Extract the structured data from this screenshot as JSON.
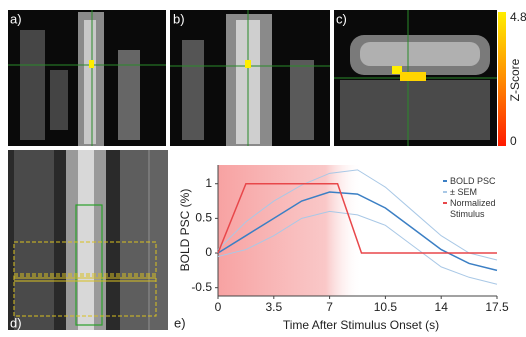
{
  "panels": {
    "a": "a)",
    "b": "b)",
    "c": "c)",
    "d": "d)",
    "e": "e)"
  },
  "colorbar": {
    "label": "Z-Score",
    "lim": [
      0,
      4.8
    ],
    "ticks": [
      4.8,
      0
    ]
  },
  "chart_data": {
    "type": "line",
    "xlabel": "Time After Stimulus Onset (s)",
    "ylabel": "BOLD PSC (%)",
    "xlim": [
      0,
      17.5
    ],
    "ylim": [
      -0.62,
      1.27
    ],
    "xticks": [
      0,
      3.5,
      7,
      10.5,
      14,
      17.5
    ],
    "yticks": [
      -0.5,
      0,
      0.5,
      1
    ],
    "stimulus_window": [
      0,
      9
    ],
    "series": [
      {
        "name": "BOLD PSC",
        "color": "#3b7fc4",
        "x": [
          0,
          1.75,
          3.5,
          5.25,
          7,
          8.75,
          10.5,
          12.25,
          14,
          15.75,
          17.5
        ],
        "values": [
          0,
          0.25,
          0.5,
          0.75,
          0.88,
          0.85,
          0.65,
          0.35,
          0.05,
          -0.15,
          -0.25
        ]
      },
      {
        "name": "± SEM",
        "color": "#a9c8e6",
        "x": [
          0,
          1.75,
          3.5,
          5.25,
          7,
          8.75,
          10.5,
          12.25,
          14,
          15.75,
          17.5
        ],
        "upper": [
          0.05,
          0.45,
          0.75,
          0.98,
          1.15,
          1.2,
          0.95,
          0.6,
          0.25,
          0,
          -0.1
        ],
        "lower": [
          -0.05,
          0.05,
          0.25,
          0.5,
          0.6,
          0.55,
          0.4,
          0.1,
          -0.2,
          -0.35,
          -0.45
        ]
      },
      {
        "name": "Normalized Stimulus",
        "color": "#e8474a",
        "x": [
          0,
          1.75,
          7.5,
          9,
          17.5
        ],
        "values": [
          0,
          1,
          1,
          0,
          0
        ]
      }
    ]
  }
}
